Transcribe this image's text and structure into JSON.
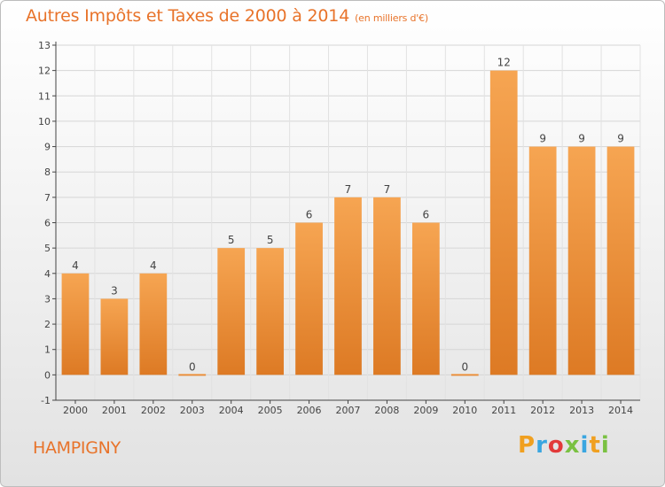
{
  "title": "Autres Impôts et Taxes de 2000 à 2014",
  "subtitle": "(en milliers d'€)",
  "footer": {
    "location": "HAMPIGNY",
    "brand": "Proxiti"
  },
  "colors": {
    "accent": "#e8732a",
    "bar_top": "#f6a552",
    "bar_bottom": "#dd7a24"
  },
  "chart_data": {
    "type": "bar",
    "title": "Autres Impôts et Taxes de 2000 à 2014",
    "subtitle": "(en milliers d'€)",
    "categories": [
      "2000",
      "2001",
      "2002",
      "2003",
      "2004",
      "2005",
      "2006",
      "2007",
      "2008",
      "2009",
      "2010",
      "2011",
      "2012",
      "2013",
      "2014"
    ],
    "values": [
      4,
      3,
      4,
      0,
      5,
      5,
      6,
      7,
      7,
      6,
      0,
      12,
      9,
      9,
      9
    ],
    "data_labels": [
      "4",
      "3",
      "4",
      "0",
      "5",
      "5",
      "6",
      "7",
      "7",
      "6",
      "0",
      "12",
      "9",
      "9",
      "9"
    ],
    "y_ticks": [
      "-1",
      "0",
      "1",
      "2",
      "3",
      "4",
      "5",
      "6",
      "7",
      "8",
      "9",
      "10",
      "11",
      "12",
      "13"
    ],
    "ylim": [
      -1,
      13
    ],
    "grid": true,
    "legend": "none"
  }
}
